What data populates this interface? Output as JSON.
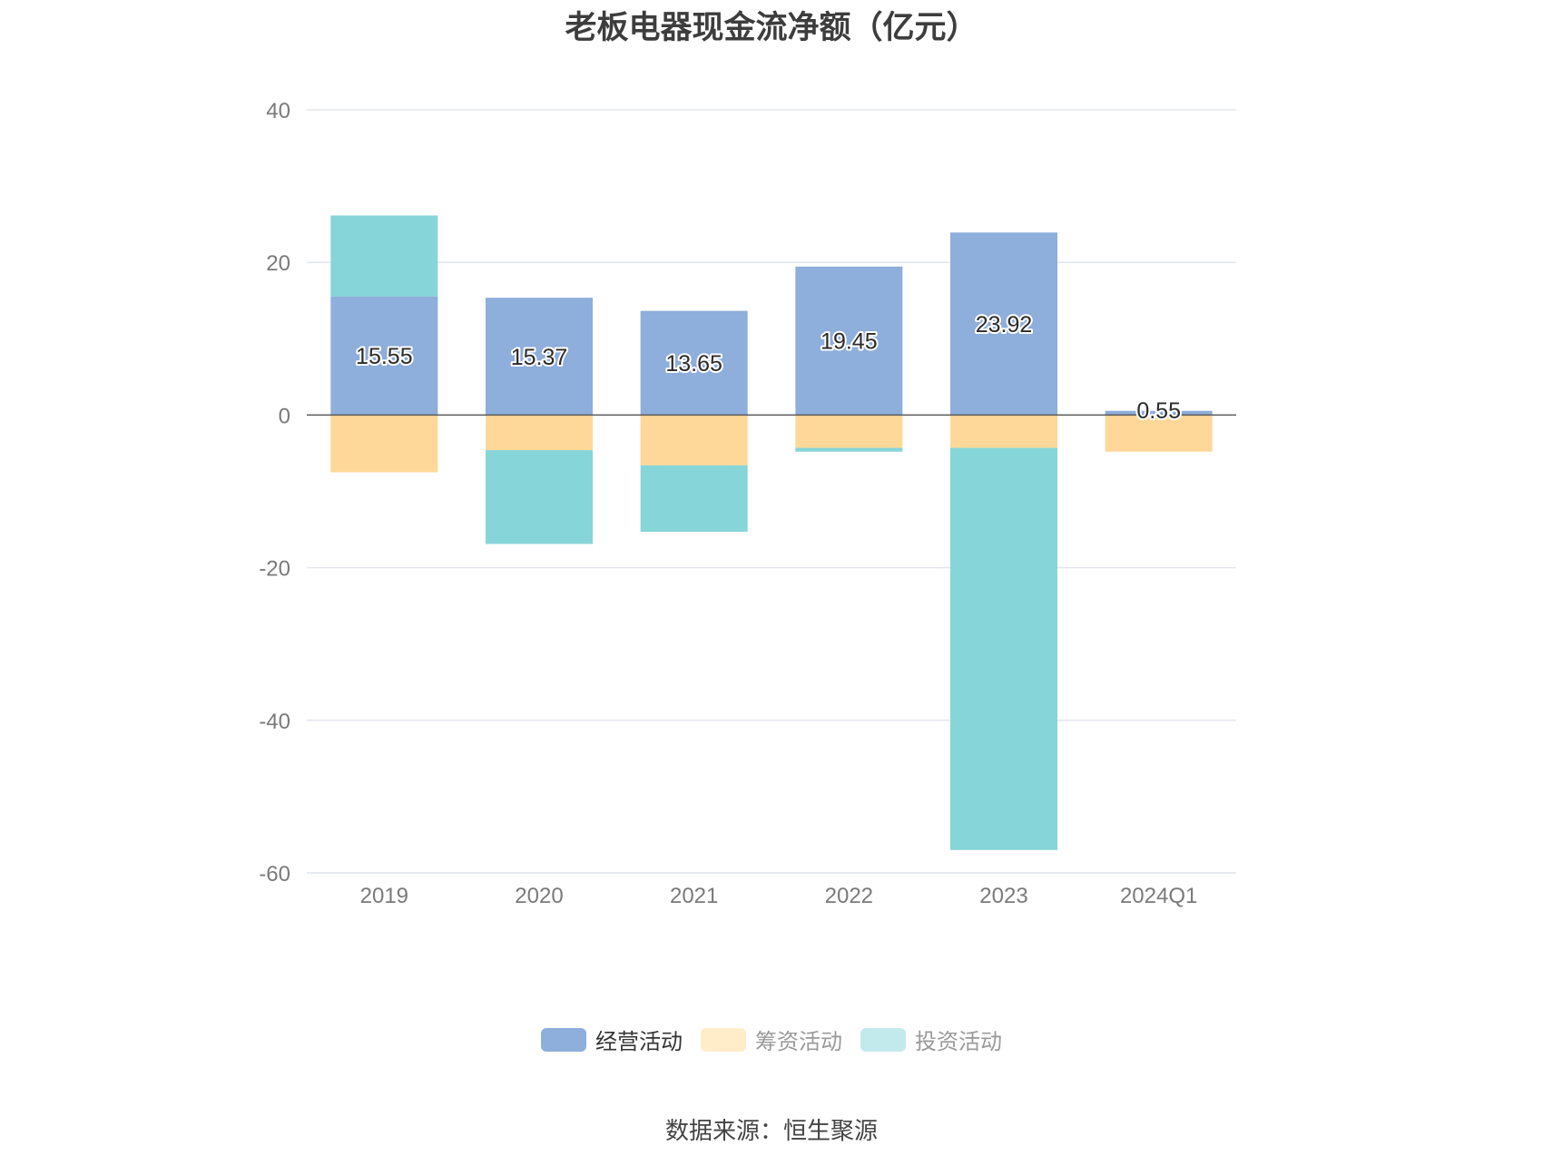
{
  "chart_data": {
    "type": "bar",
    "stacked": true,
    "title": "老板电器现金流净额（亿元）",
    "categories": [
      "2019",
      "2020",
      "2021",
      "2022",
      "2023",
      "2024Q1"
    ],
    "ylim": [
      -60,
      40
    ],
    "yticks": [
      "40",
      "20",
      "0",
      "-20",
      "-40",
      "-60"
    ],
    "grid": true,
    "legend_position": "bottom",
    "series": [
      {
        "name": "经营活动",
        "color": "#8eaedb",
        "values": [
          15.55,
          15.37,
          13.65,
          19.45,
          23.92,
          0.55
        ],
        "labels": [
          "15.55",
          "15.37",
          "13.65",
          "19.45",
          "23.92",
          "0.55"
        ]
      },
      {
        "name": "筹资活动",
        "color": "#fed898",
        "values": [
          -7.5,
          -4.6,
          -6.6,
          -4.3,
          -4.3,
          -4.8
        ]
      },
      {
        "name": "投资活动",
        "color": "#86d5d8",
        "values": [
          10.6,
          -12.3,
          -8.7,
          -0.5,
          -52.7,
          0
        ]
      }
    ]
  },
  "legend": [
    {
      "label": "经营活动",
      "color": "#8eaedb",
      "active": true
    },
    {
      "label": "筹资活动",
      "color": "#ffecc8",
      "active": false
    },
    {
      "label": "投资活动",
      "color": "#c2eaec",
      "active": false
    }
  ],
  "source": "数据来源：恒生聚源"
}
